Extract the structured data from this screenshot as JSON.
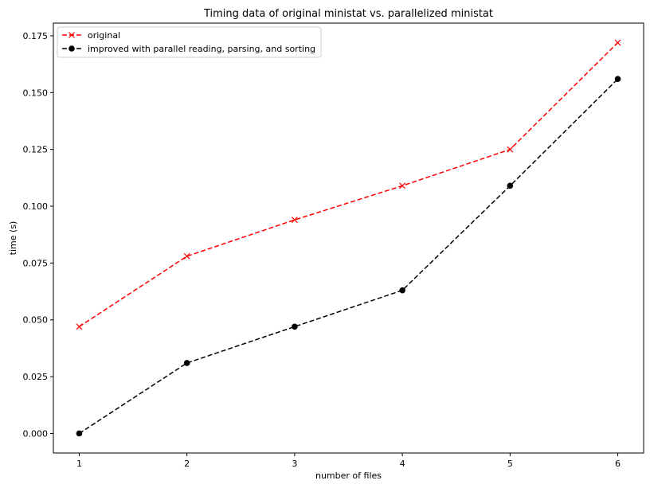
{
  "chart_data": {
    "type": "line",
    "title": "Timing data of original ministat vs. parallelized ministat",
    "xlabel": "number of files",
    "ylabel": "time (s)",
    "x": [
      1,
      2,
      3,
      4,
      5,
      6
    ],
    "xlim": [
      0.76,
      6.24
    ],
    "ylim": [
      -0.0086,
      0.1806
    ],
    "xticks": [
      1,
      2,
      3,
      4,
      5,
      6
    ],
    "xtick_labels": [
      "1",
      "2",
      "3",
      "4",
      "5",
      "6"
    ],
    "yticks": [
      0.0,
      0.025,
      0.05,
      0.075,
      0.1,
      0.125,
      0.15,
      0.175
    ],
    "ytick_labels": [
      "0.000",
      "0.025",
      "0.050",
      "0.075",
      "0.100",
      "0.125",
      "0.150",
      "0.175"
    ],
    "grid": false,
    "legend_position": "upper-left",
    "series": [
      {
        "name": "original",
        "values": [
          0.047,
          0.078,
          0.094,
          0.109,
          0.125,
          0.172
        ],
        "color": "#ff0000",
        "marker": "x",
        "linestyle": "dashed"
      },
      {
        "name": "improved with parallel reading, parsing, and sorting",
        "values": [
          0.0,
          0.031,
          0.047,
          0.063,
          0.109,
          0.156
        ],
        "color": "#000000",
        "marker": "circle",
        "linestyle": "dashed"
      }
    ]
  }
}
